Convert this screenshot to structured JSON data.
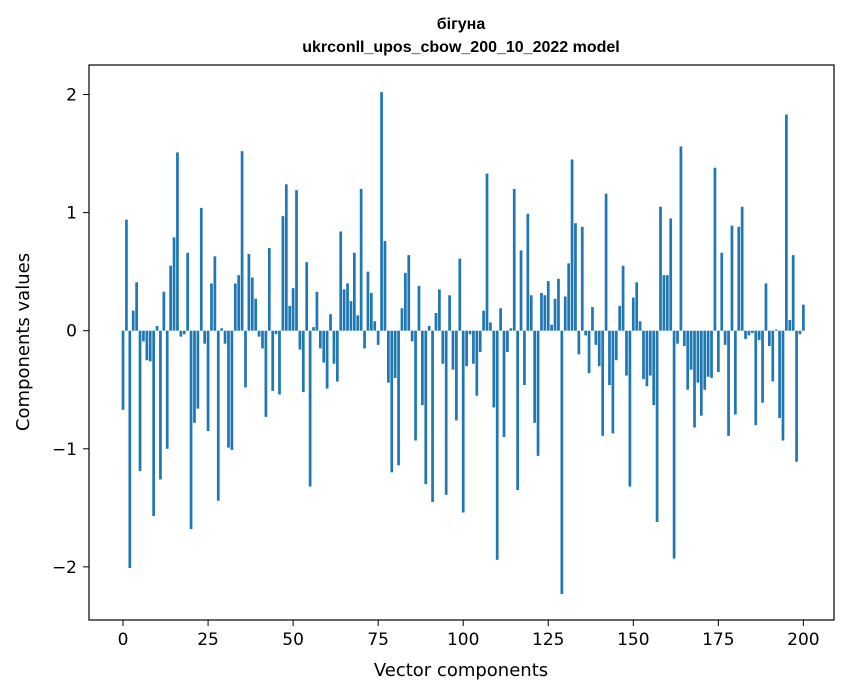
{
  "chart_data": {
    "type": "bar",
    "title": "бігуна",
    "subtitle": "ukrconll_upos_cbow_200_10_2022 model",
    "xlabel": "Vector components",
    "ylabel": "Components values",
    "xlim": [
      -10,
      209
    ],
    "ylim": [
      -2.45,
      2.25
    ],
    "xticks": [
      0,
      25,
      50,
      75,
      100,
      125,
      150,
      175,
      200
    ],
    "xtick_labels": [
      "0",
      "25",
      "50",
      "75",
      "100",
      "125",
      "150",
      "175",
      "200"
    ],
    "yticks": [
      -2,
      -1,
      0,
      1,
      2
    ],
    "ytick_labels": [
      "−2",
      "−1",
      "0",
      "1",
      "2"
    ],
    "grid": false,
    "legend": "none",
    "bar_color": "#1f77b4",
    "series": [
      {
        "values": [
          -0.67,
          0.94,
          -2.01,
          0.17,
          0.41,
          -1.19,
          -0.09,
          -0.25,
          -0.26,
          -1.57,
          0.04,
          -1.26,
          0.33,
          -1.0,
          0.55,
          0.79,
          1.51,
          -0.05,
          -0.03,
          0.66,
          -1.68,
          -0.78,
          -0.66,
          1.04,
          -0.11,
          -0.85,
          0.4,
          0.63,
          -1.44,
          0.02,
          -0.11,
          -0.99,
          -1.01,
          0.4,
          0.47,
          1.52,
          -0.48,
          0.65,
          0.45,
          0.27,
          -0.05,
          -0.15,
          -0.73,
          0.7,
          -0.51,
          -0.03,
          -0.54,
          0.97,
          1.24,
          0.21,
          0.36,
          1.19,
          -0.16,
          -0.52,
          0.58,
          -1.32,
          0.03,
          0.33,
          -0.15,
          -0.27,
          -0.49,
          0.14,
          -0.28,
          -0.43,
          0.84,
          0.35,
          0.4,
          0.25,
          0.66,
          0.13,
          1.2,
          -0.15,
          0.5,
          0.32,
          0.08,
          -0.12,
          2.02,
          0.76,
          -0.44,
          -1.2,
          -0.4,
          -1.14,
          0.19,
          0.49,
          0.64,
          -0.09,
          -0.93,
          0.38,
          -0.63,
          -1.3,
          0.04,
          -1.45,
          0.15,
          0.35,
          -0.28,
          -1.39,
          0.3,
          -0.33,
          -0.76,
          0.61,
          -1.54,
          -0.3,
          -0.03,
          -0.28,
          -0.55,
          -0.18,
          0.17,
          1.33,
          0.07,
          -0.65,
          -1.94,
          0.19,
          -0.9,
          -0.18,
          0.02,
          1.2,
          -1.35,
          0.68,
          -0.46,
          0.99,
          0.3,
          -0.78,
          -1.06,
          0.32,
          0.3,
          0.42,
          0.05,
          0.27,
          0.44,
          -2.23,
          0.29,
          0.57,
          1.45,
          0.91,
          -0.2,
          0.88,
          -0.04,
          -0.36,
          0.2,
          -0.12,
          -0.3,
          -0.89,
          1.16,
          -0.46,
          -0.87,
          -0.25,
          0.21,
          0.55,
          -0.38,
          -1.32,
          0.28,
          0.41,
          0.08,
          -0.41,
          -0.47,
          -0.38,
          -0.63,
          -1.62,
          1.05,
          0.47,
          0.47,
          0.95,
          -1.93,
          -0.11,
          1.56,
          -0.13,
          -0.5,
          -0.33,
          -0.82,
          -0.44,
          -0.72,
          -0.5,
          -0.39,
          -0.4,
          1.38,
          -0.35,
          0.66,
          -0.12,
          -0.89,
          0.89,
          -0.71,
          0.88,
          1.05,
          -0.07,
          -0.04,
          -0.02,
          -0.8,
          -0.08,
          -0.61,
          0.4,
          -0.13,
          -0.43,
          0.01,
          -0.74,
          -0.93,
          1.83,
          0.09,
          0.64,
          -1.11,
          -0.03,
          0.22
        ]
      }
    ]
  }
}
